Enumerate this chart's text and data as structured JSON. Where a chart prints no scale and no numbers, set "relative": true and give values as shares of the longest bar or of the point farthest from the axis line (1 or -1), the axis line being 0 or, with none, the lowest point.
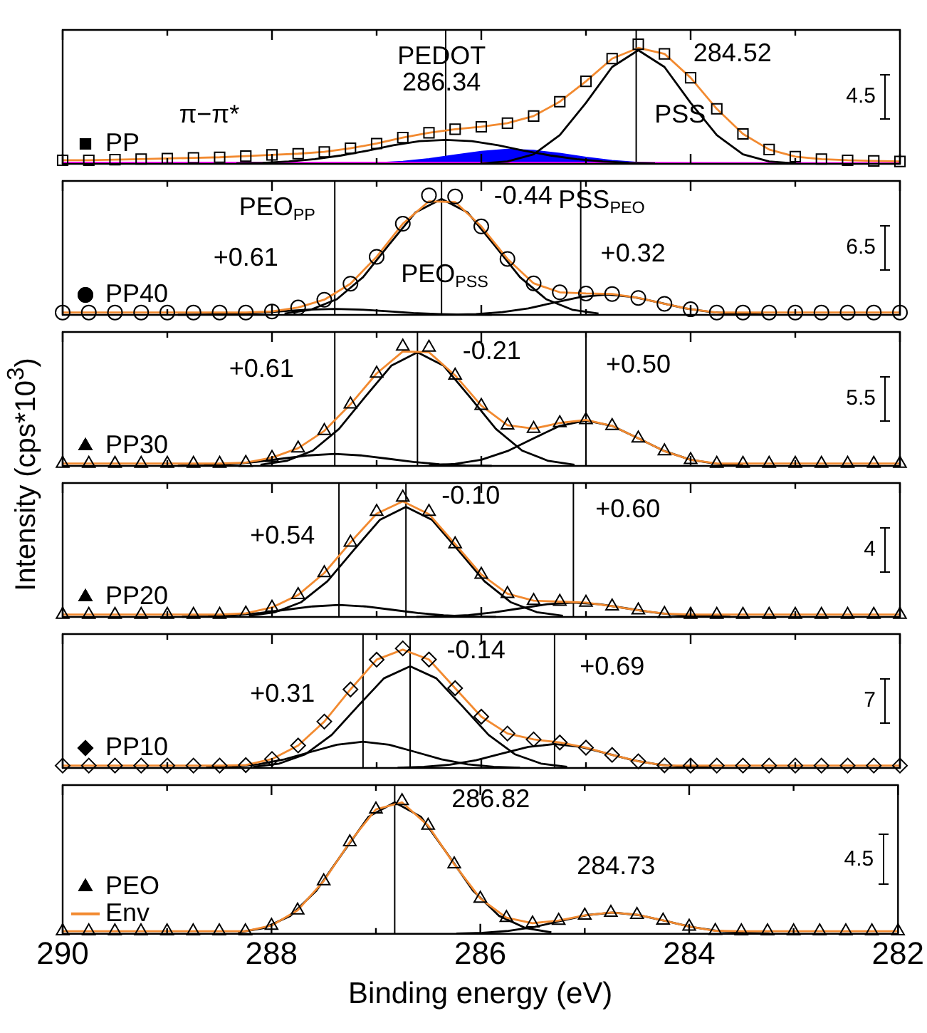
{
  "chart_data": [
    {
      "type": "line",
      "relative": true,
      "legend": "bottom left",
      "tick_labels": false,
      "xlim": [
        290,
        282
      ],
      "xticks": [
        290,
        {
          "value": 289,
          "label": null
        },
        288,
        {
          "value": 287,
          "label": null
        },
        286,
        {
          "value": 285,
          "label": null
        },
        284,
        {
          "value": 283,
          "label": null
        },
        282
      ],
      "x": [
        290,
        289.75,
        289.5,
        289.25,
        289,
        288.75,
        288.5,
        288.25,
        288,
        287.75,
        287.5,
        287.25,
        287,
        286.75,
        286.5,
        286.25,
        286,
        285.75,
        285.5,
        285.25,
        285,
        284.75,
        284.5,
        284.25,
        284,
        283.75,
        283.5,
        283.25,
        283,
        282.75,
        282.5,
        282.25,
        282
      ],
      "series": [
        {
          "name": "PP",
          "type": "scatter",
          "marker": "square",
          "color": "#000000",
          "values": [
            0.03,
            0.03,
            0.035,
            0.04,
            0.045,
            0.05,
            0.055,
            0.065,
            0.075,
            0.085,
            0.1,
            0.13,
            0.17,
            0.22,
            0.26,
            0.29,
            0.31,
            0.34,
            0.4,
            0.52,
            0.69,
            0.88,
            1,
            0.92,
            0.72,
            0.46,
            0.25,
            0.12,
            0.06,
            0.04,
            0.03,
            0.025,
            0.02
          ]
        },
        {
          "type": "line",
          "color": "#f28a30",
          "values": [
            0.03,
            0.03,
            0.035,
            0.04,
            0.045,
            0.05,
            0.055,
            0.065,
            0.075,
            0.085,
            0.1,
            0.13,
            0.17,
            0.22,
            0.26,
            0.29,
            0.31,
            0.34,
            0.4,
            0.52,
            0.69,
            0.88,
            0.97,
            0.92,
            0.72,
            0.46,
            0.25,
            0.12,
            0.06,
            0.04,
            0.03,
            0.025,
            0.02
          ]
        },
        {
          "type": "line",
          "color": "#000000",
          "x": [
            286,
            285.75,
            285.5,
            285.25,
            285,
            284.75,
            284.5,
            284.25,
            284,
            283.75,
            283.5,
            283.25,
            283
          ],
          "values": [
            0.004,
            0.02,
            0.08,
            0.24,
            0.51,
            0.81,
            0.95,
            0.81,
            0.51,
            0.24,
            0.08,
            0.02,
            0.004
          ]
        },
        {
          "type": "line",
          "color": "#000000",
          "x": [
            288.34,
            288.09,
            287.84,
            287.59,
            287.34,
            287.09,
            286.84,
            286.59,
            286.34,
            286.09,
            285.84,
            285.59,
            285.34,
            285.09,
            284.84,
            284.59,
            284.34
          ],
          "values": [
            0.004,
            0.008,
            0.02,
            0.04,
            0.07,
            0.11,
            0.155,
            0.19,
            0.2,
            0.19,
            0.155,
            0.11,
            0.07,
            0.04,
            0.02,
            0.008,
            0.004
          ]
        },
        {
          "type": "line",
          "color": "#ff00ff",
          "x": [
            290,
            286,
            282
          ],
          "values": [
            0.01,
            0.01,
            0.005
          ]
        },
        {
          "type": "area",
          "color": "#0000ff",
          "x": [
            287,
            286.75,
            286.5,
            286.25,
            286,
            285.75,
            285.5,
            285.25,
            285,
            284.75,
            284.5,
            284.25,
            284
          ],
          "values": [
            0.007,
            0.019,
            0.042,
            0.073,
            0.103,
            0.12,
            0.112,
            0.086,
            0.053,
            0.027,
            0.011,
            0.004,
            0.001
          ]
        }
      ],
      "ref_lines": [
        {
          "axis": "x",
          "value": 286.34
        },
        {
          "axis": "x",
          "value": 284.52
        }
      ],
      "annotations": [
        "PEDOT",
        "286.34",
        "284.52",
        "PSS",
        "π−π*",
        "4.5"
      ]
    },
    {
      "type": "line",
      "relative": true,
      "legend": "bottom left",
      "tick_labels": false,
      "xlim": [
        290,
        282
      ],
      "xticks": [
        290,
        {
          "value": 289,
          "label": null
        },
        288,
        {
          "value": 287,
          "label": null
        },
        286,
        {
          "value": 285,
          "label": null
        },
        284,
        {
          "value": 283,
          "label": null
        },
        282
      ],
      "x": [
        290,
        289.75,
        289.5,
        289.25,
        289,
        288.75,
        288.5,
        288.25,
        288,
        287.75,
        287.5,
        287.25,
        287,
        286.75,
        286.5,
        286.25,
        286,
        285.75,
        285.5,
        285.25,
        285,
        284.75,
        284.5,
        284.25,
        284,
        283.75,
        283.5,
        283.25,
        283,
        282.75,
        282.5,
        282.25,
        282
      ],
      "series": [
        {
          "name": "PP40",
          "type": "scatter",
          "marker": "circle",
          "color": "#000000",
          "values": [
            0.02,
            0.02,
            0.02,
            0.02,
            0.02,
            0.02,
            0.02,
            0.02,
            0.029,
            0.062,
            0.127,
            0.261,
            0.486,
            0.762,
            1,
            0.99,
            0.74,
            0.468,
            0.264,
            0.189,
            0.179,
            0.175,
            0.142,
            0.093,
            0.047,
            0.02,
            0.02,
            0.02,
            0.02,
            0.02,
            0.02,
            0.02,
            0.02
          ]
        },
        {
          "type": "line",
          "color": "#f28a30",
          "values": [
            0.02,
            0.02,
            0.02,
            0.02,
            0.02,
            0.02,
            0.02,
            0.02,
            0.029,
            0.062,
            0.127,
            0.261,
            0.486,
            0.762,
            0.95,
            0.944,
            0.74,
            0.468,
            0.264,
            0.189,
            0.179,
            0.175,
            0.142,
            0.093,
            0.047,
            0.02,
            0.02,
            0.02,
            0.02,
            0.02,
            0.02,
            0.02,
            0.02
          ]
        },
        {
          "type": "line",
          "color": "#000000",
          "x": [
            288.9,
            288.65,
            288.4,
            288.15,
            287.9,
            287.65,
            287.4,
            287.15,
            286.9,
            286.65,
            286.4,
            286.15,
            285.9
          ],
          "values": [
            0.001,
            0.002,
            0.007,
            0.016,
            0.03,
            0.044,
            0.05,
            0.044,
            0.03,
            0.016,
            0.007,
            0.002,
            0.001
          ]
        },
        {
          "type": "line",
          "color": "#000000",
          "x": [
            287.88,
            287.63,
            287.38,
            287.13,
            286.88,
            286.63,
            286.38,
            286.13,
            285.88,
            285.63,
            285.38,
            285.13,
            284.88
          ],
          "values": [
            0.011,
            0.043,
            0.131,
            0.315,
            0.589,
            0.856,
            0.97,
            0.856,
            0.589,
            0.315,
            0.131,
            0.043,
            0.011
          ]
        },
        {
          "type": "line",
          "color": "#000000",
          "x": [
            286.3,
            286.05,
            285.8,
            285.55,
            285.3,
            285.05,
            284.8,
            284.55,
            284.3,
            284.05,
            283.8,
            283.55,
            283.3
          ],
          "values": [
            0.002,
            0.007,
            0.023,
            0.055,
            0.103,
            0.15,
            0.17,
            0.15,
            0.103,
            0.055,
            0.023,
            0.007,
            0.002
          ]
        }
      ],
      "ref_lines": [
        {
          "axis": "x",
          "value": 287.4
        },
        {
          "axis": "x",
          "value": 286.38
        },
        {
          "axis": "x",
          "value": 285.05
        }
      ],
      "annotations": [
        "PEO$_{PP}$",
        "-0.44",
        "PSS$_{PEO}$",
        "PEO$_{PSS}$",
        "+0.61",
        "+0.32",
        "6.5"
      ]
    },
    {
      "type": "line",
      "relative": true,
      "legend": "bottom left",
      "tick_labels": false,
      "xlim": [
        290,
        282
      ],
      "ylabel": "Intensity (cps*10$^{3}$)",
      "xticks": [
        290,
        {
          "value": 289,
          "label": null
        },
        288,
        {
          "value": 287,
          "label": null
        },
        286,
        {
          "value": 285,
          "label": null
        },
        284,
        {
          "value": 283,
          "label": null
        },
        282
      ],
      "x": [
        290,
        289.75,
        289.5,
        289.25,
        289,
        288.75,
        288.5,
        288.25,
        288,
        287.75,
        287.5,
        287.25,
        287,
        286.75,
        286.5,
        286.25,
        286,
        285.75,
        285.5,
        285.25,
        285,
        284.75,
        284.5,
        284.25,
        284,
        283.75,
        283.5,
        283.25,
        283,
        282.75,
        282.5,
        282.25,
        282
      ],
      "series": [
        {
          "name": "PP30",
          "type": "scatter",
          "marker": "triangle",
          "color": "#000000",
          "values": [
            0.02,
            0.02,
            0.02,
            0.02,
            0.02,
            0.02,
            0.02,
            0.027,
            0.069,
            0.148,
            0.293,
            0.515,
            0.773,
            1,
            0.99,
            0.757,
            0.504,
            0.34,
            0.312,
            0.359,
            0.385,
            0.335,
            0.231,
            0.123,
            0.051,
            0.02,
            0.02,
            0.02,
            0.02,
            0.02,
            0.02,
            0.02,
            0.02
          ]
        },
        {
          "type": "line",
          "color": "#f28a30",
          "values": [
            0.02,
            0.02,
            0.02,
            0.02,
            0.02,
            0.02,
            0.02,
            0.027,
            0.069,
            0.148,
            0.293,
            0.515,
            0.773,
            0.957,
            0.951,
            0.757,
            0.504,
            0.34,
            0.312,
            0.359,
            0.385,
            0.335,
            0.231,
            0.123,
            0.051,
            0.02,
            0.02,
            0.02,
            0.02,
            0.02,
            0.02,
            0.02,
            0.02
          ]
        },
        {
          "type": "line",
          "color": "#000000",
          "x": [
            288.9,
            288.65,
            288.4,
            288.15,
            287.9,
            287.65,
            287.4,
            287.15,
            286.9,
            286.65,
            286.4,
            286.15,
            285.9
          ],
          "values": [
            0.001,
            0.004,
            0.014,
            0.033,
            0.061,
            0.088,
            0.1,
            0.088,
            0.061,
            0.033,
            0.014,
            0.004,
            0.001
          ]
        },
        {
          "type": "line",
          "color": "#000000",
          "x": [
            288.11,
            287.86,
            287.61,
            287.36,
            287.11,
            286.86,
            286.61,
            286.36,
            286.11,
            285.86,
            285.61,
            285.36,
            285.11
          ],
          "values": [
            0.01,
            0.042,
            0.128,
            0.309,
            0.577,
            0.838,
            0.95,
            0.838,
            0.577,
            0.309,
            0.128,
            0.042,
            0.01
          ]
        },
        {
          "type": "line",
          "color": "#000000",
          "x": [
            286.5,
            286.25,
            286,
            285.75,
            285.5,
            285.25,
            285,
            284.75,
            284.5,
            284.25,
            284,
            283.75,
            283.5
          ],
          "values": [
            0.004,
            0.017,
            0.051,
            0.124,
            0.231,
            0.335,
            0.38,
            0.335,
            0.231,
            0.124,
            0.051,
            0.017,
            0.004
          ]
        }
      ],
      "ref_lines": [
        {
          "axis": "x",
          "value": 287.4
        },
        {
          "axis": "x",
          "value": 286.61
        },
        {
          "axis": "x",
          "value": 285.0
        }
      ],
      "annotations": [
        "+0.61",
        "-0.21",
        "+0.50",
        "5.5"
      ]
    },
    {
      "type": "line",
      "relative": true,
      "legend": "bottom left",
      "tick_labels": false,
      "xlim": [
        290,
        282
      ],
      "xticks": [
        290,
        {
          "value": 289,
          "label": null
        },
        288,
        {
          "value": 287,
          "label": null
        },
        286,
        {
          "value": 285,
          "label": null
        },
        284,
        {
          "value": 283,
          "label": null
        },
        282
      ],
      "x": [
        290,
        289.75,
        289.5,
        289.25,
        289,
        288.75,
        288.5,
        288.25,
        288,
        287.75,
        287.5,
        287.25,
        287,
        286.75,
        286.5,
        286.25,
        286,
        285.75,
        285.5,
        285.25,
        285,
        284.75,
        284.5,
        284.25,
        284,
        283.75,
        283.5,
        283.25,
        283,
        282.75,
        282.5,
        282.25,
        282
      ],
      "series": [
        {
          "name": "PP20",
          "type": "scatter",
          "marker": "triangle",
          "color": "#000000",
          "values": [
            0.02,
            0.02,
            0.02,
            0.02,
            0.02,
            0.02,
            0.02,
            0.03,
            0.079,
            0.184,
            0.368,
            0.623,
            0.88,
            1,
            0.88,
            0.609,
            0.355,
            0.194,
            0.136,
            0.128,
            0.12,
            0.09,
            0.056,
            0.027,
            0.02,
            0.02,
            0.02,
            0.02,
            0.02,
            0.02,
            0.02,
            0.02,
            0.02
          ]
        },
        {
          "type": "line",
          "color": "#f28a30",
          "values": [
            0.02,
            0.02,
            0.02,
            0.02,
            0.02,
            0.02,
            0.02,
            0.03,
            0.079,
            0.184,
            0.368,
            0.623,
            0.864,
            0.966,
            0.86,
            0.609,
            0.355,
            0.194,
            0.136,
            0.128,
            0.12,
            0.09,
            0.056,
            0.027,
            0.02,
            0.02,
            0.02,
            0.02,
            0.02,
            0.02,
            0.02,
            0.02,
            0.02
          ]
        },
        {
          "type": "line",
          "color": "#000000",
          "x": [
            288.86,
            288.61,
            288.36,
            288.11,
            287.86,
            287.61,
            287.36,
            287.11,
            286.86,
            286.61,
            286.36,
            286.11,
            285.86
          ],
          "values": [
            0.001,
            0.004,
            0.014,
            0.033,
            0.061,
            0.088,
            0.1,
            0.088,
            0.061,
            0.033,
            0.014,
            0.004,
            0.001
          ]
        },
        {
          "type": "line",
          "color": "#000000",
          "x": [
            288.22,
            287.97,
            287.72,
            287.47,
            287.22,
            286.97,
            286.72,
            286.47,
            286.22,
            285.97,
            285.72,
            285.47,
            285.22
          ],
          "values": [
            0.01,
            0.04,
            0.124,
            0.299,
            0.558,
            0.811,
            0.92,
            0.811,
            0.558,
            0.299,
            0.124,
            0.04,
            0.01
          ]
        },
        {
          "type": "line",
          "color": "#000000",
          "x": [
            286.62,
            286.37,
            286.12,
            285.87,
            285.62,
            285.37,
            285.12,
            284.87,
            284.62,
            284.37,
            284.12,
            283.87,
            283.62
          ],
          "values": [
            0.001,
            0.005,
            0.016,
            0.039,
            0.073,
            0.106,
            0.12,
            0.106,
            0.073,
            0.039,
            0.016,
            0.005,
            0.001
          ]
        }
      ],
      "ref_lines": [
        {
          "axis": "x",
          "value": 287.36
        },
        {
          "axis": "x",
          "value": 286.72
        },
        {
          "axis": "x",
          "value": 285.12
        }
      ],
      "annotations": [
        "+0.54",
        "-0.10",
        "+0.60",
        "4"
      ]
    },
    {
      "type": "line",
      "relative": true,
      "legend": "bottom left",
      "tick_labels": false,
      "xlim": [
        290,
        282
      ],
      "xticks": [
        290,
        {
          "value": 289,
          "label": null
        },
        288,
        {
          "value": 287,
          "label": null
        },
        286,
        {
          "value": 285,
          "label": null
        },
        284,
        {
          "value": 283,
          "label": null
        },
        282
      ],
      "x": [
        290,
        289.75,
        289.5,
        289.25,
        289,
        288.75,
        288.5,
        288.25,
        288,
        287.75,
        287.5,
        287.25,
        287,
        286.75,
        286.5,
        286.25,
        286,
        285.75,
        285.5,
        285.25,
        285,
        284.75,
        284.5,
        284.25,
        284,
        283.75,
        283.5,
        283.25,
        283,
        282.75,
        282.5,
        282.25,
        282
      ],
      "series": [
        {
          "name": "PP10",
          "type": "scatter",
          "marker": "diamond",
          "color": "#000000",
          "values": [
            0.02,
            0.02,
            0.02,
            0.02,
            0.02,
            0.02,
            0.02,
            0.024,
            0.075,
            0.188,
            0.388,
            0.657,
            0.906,
            1,
            0.907,
            0.667,
            0.429,
            0.288,
            0.239,
            0.213,
            0.17,
            0.109,
            0.056,
            0.022,
            0.02,
            0.02,
            0.02,
            0.02,
            0.02,
            0.02,
            0.02,
            0.02,
            0.02
          ]
        },
        {
          "type": "line",
          "color": "#f28a30",
          "values": [
            0.02,
            0.02,
            0.02,
            0.02,
            0.02,
            0.02,
            0.02,
            0.024,
            0.075,
            0.188,
            0.388,
            0.657,
            0.906,
            0.99,
            0.907,
            0.667,
            0.429,
            0.288,
            0.239,
            0.213,
            0.17,
            0.109,
            0.056,
            0.022,
            0.02,
            0.02,
            0.02,
            0.02,
            0.02,
            0.02,
            0.02,
            0.02,
            0.02
          ]
        },
        {
          "type": "line",
          "color": "#000000",
          "x": [
            288.63,
            288.38,
            288.13,
            287.88,
            287.63,
            287.38,
            287.13,
            286.88,
            286.63,
            286.38,
            286.13,
            285.88,
            285.63
          ],
          "values": [
            0.002,
            0.01,
            0.03,
            0.072,
            0.134,
            0.194,
            0.22,
            0.194,
            0.134,
            0.072,
            0.03,
            0.01,
            0.002
          ]
        },
        {
          "type": "line",
          "color": "#000000",
          "x": [
            288.18,
            287.93,
            287.68,
            287.43,
            287.18,
            286.93,
            286.68,
            286.43,
            286.18,
            285.93,
            285.68,
            285.43,
            285.18
          ],
          "values": [
            0.009,
            0.037,
            0.115,
            0.276,
            0.516,
            0.75,
            0.85,
            0.75,
            0.516,
            0.276,
            0.115,
            0.037,
            0.009
          ]
        },
        {
          "type": "line",
          "color": "#000000",
          "x": [
            286.8,
            286.55,
            286.3,
            286.05,
            285.8,
            285.55,
            285.3,
            285.05,
            284.8,
            284.55,
            284.3,
            284.05,
            283.8
          ],
          "values": [
            0.002,
            0.009,
            0.027,
            0.065,
            0.121,
            0.176,
            0.2,
            0.176,
            0.121,
            0.065,
            0.027,
            0.009,
            0.002
          ]
        }
      ],
      "ref_lines": [
        {
          "axis": "x",
          "value": 287.13
        },
        {
          "axis": "x",
          "value": 286.68
        },
        {
          "axis": "x",
          "value": 285.3
        }
      ],
      "annotations": [
        "+0.31",
        "-0.14",
        "+0.69",
        "7"
      ]
    },
    {
      "type": "line",
      "relative": true,
      "legend": "bottom left",
      "xlim": [
        290,
        282
      ],
      "xlabel": "Binding energy (eV)",
      "xticks": [
        290,
        {
          "value": 289,
          "label": null
        },
        288,
        {
          "value": 287,
          "label": null
        },
        286,
        {
          "value": 285,
          "label": null
        },
        284,
        {
          "value": 283,
          "label": null
        },
        282
      ],
      "x": [
        290,
        289.75,
        289.5,
        289.25,
        289,
        288.75,
        288.5,
        288.25,
        288,
        287.75,
        287.5,
        287.25,
        287,
        286.75,
        286.5,
        286.25,
        286,
        285.75,
        285.5,
        285.25,
        285,
        284.75,
        284.5,
        284.25,
        284,
        283.75,
        283.5,
        283.25,
        283,
        282.75,
        282.5,
        282.25,
        282
      ],
      "series": [
        {
          "name": "PEO",
          "type": "scatter",
          "marker": "triangle",
          "color": "#000000",
          "values": [
            0.02,
            0.02,
            0.02,
            0.02,
            0.02,
            0.02,
            0.02,
            0.02,
            0.062,
            0.177,
            0.397,
            0.691,
            0.937,
            1,
            0.815,
            0.524,
            0.266,
            0.121,
            0.08,
            0.1,
            0.139,
            0.16,
            0.144,
            0.101,
            0.055,
            0.023,
            0.02,
            0.02,
            0.02,
            0.02,
            0.02,
            0.02,
            0.02
          ]
        },
        {
          "name": "Env",
          "type": "line",
          "color": "#f28a30",
          "values": [
            0.02,
            0.02,
            0.02,
            0.02,
            0.02,
            0.02,
            0.02,
            0.02,
            0.062,
            0.177,
            0.397,
            0.691,
            0.937,
            0.99,
            0.815,
            0.524,
            0.266,
            0.121,
            0.08,
            0.1,
            0.139,
            0.16,
            0.144,
            0.101,
            0.055,
            0.023,
            0.02,
            0.02,
            0.02,
            0.02,
            0.02,
            0.02,
            0.02
          ]
        },
        {
          "type": "line",
          "color": "#000000",
          "x": [
            288.32,
            288.07,
            287.82,
            287.57,
            287.32,
            287.07,
            286.82,
            286.57,
            286.32,
            286.07,
            285.82,
            285.57,
            285.32
          ],
          "values": [
            0.011,
            0.044,
            0.135,
            0.325,
            0.607,
            0.882,
            0.99,
            0.882,
            0.607,
            0.325,
            0.135,
            0.044,
            0.011
          ]
        },
        {
          "type": "line",
          "color": "#000000",
          "x": [
            286.23,
            285.98,
            285.73,
            285.48,
            285.23,
            284.98,
            284.73,
            284.48,
            284.23,
            283.98,
            283.73,
            283.48,
            283.23
          ],
          "values": [
            0.002,
            0.007,
            0.022,
            0.052,
            0.097,
            0.141,
            0.16,
            0.141,
            0.097,
            0.052,
            0.022,
            0.007,
            0.002
          ]
        }
      ],
      "ref_lines": [
        {
          "axis": "x",
          "value": 286.82
        }
      ],
      "annotations": [
        "286.82",
        "284.73",
        "4.5"
      ]
    }
  ]
}
